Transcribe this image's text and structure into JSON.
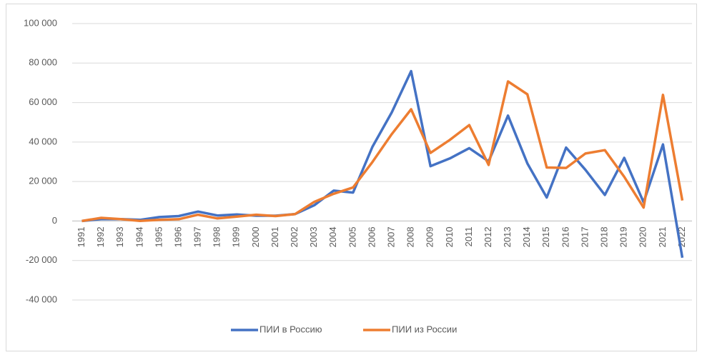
{
  "chart_data": {
    "type": "line",
    "categories": [
      "1991",
      "1992",
      "1993",
      "1994",
      "1995",
      "1996",
      "1997",
      "1998",
      "1999",
      "2000",
      "2001",
      "2002",
      "2003",
      "2004",
      "2005",
      "2006",
      "2007",
      "2008",
      "2009",
      "2010",
      "2011",
      "2012",
      "2013",
      "2014",
      "2015",
      "2016",
      "2017",
      "2018",
      "2019",
      "2020",
      "2021",
      "2022"
    ],
    "series": [
      {
        "name": "ПИИ в Россию",
        "color": "#4472c4",
        "values": [
          0,
          1000,
          1000,
          600,
          2000,
          2500,
          4800,
          2800,
          3300,
          2700,
          2700,
          3500,
          8000,
          15400,
          14400,
          37600,
          55000,
          75900,
          27800,
          31700,
          36900,
          30200,
          53400,
          29200,
          11900,
          37200,
          25900,
          13200,
          32000,
          9500,
          38800,
          -18600
        ]
      },
      {
        "name": "ПИИ из России",
        "color": "#ed7d31",
        "values": [
          0,
          1600,
          1000,
          100,
          600,
          900,
          3200,
          1300,
          2200,
          3200,
          2500,
          3500,
          9700,
          13800,
          17000,
          29900,
          44000,
          56600,
          34500,
          41100,
          48600,
          28400,
          70700,
          64200,
          27100,
          26900,
          34200,
          35900,
          22400,
          6800,
          63900,
          10400
        ]
      }
    ],
    "ylim": [
      -40000,
      100000
    ],
    "yticks": [
      {
        "value": -40000,
        "label": "-40 000"
      },
      {
        "value": -20000,
        "label": "-20 000"
      },
      0,
      {
        "value": 20000,
        "label": "20 000"
      },
      {
        "value": 40000,
        "label": "40 000"
      },
      {
        "value": 60000,
        "label": "60 000"
      },
      {
        "value": 80000,
        "label": "80 000"
      },
      {
        "value": 100000,
        "label": "100 000"
      }
    ],
    "grid": true,
    "legend": "bottom"
  }
}
